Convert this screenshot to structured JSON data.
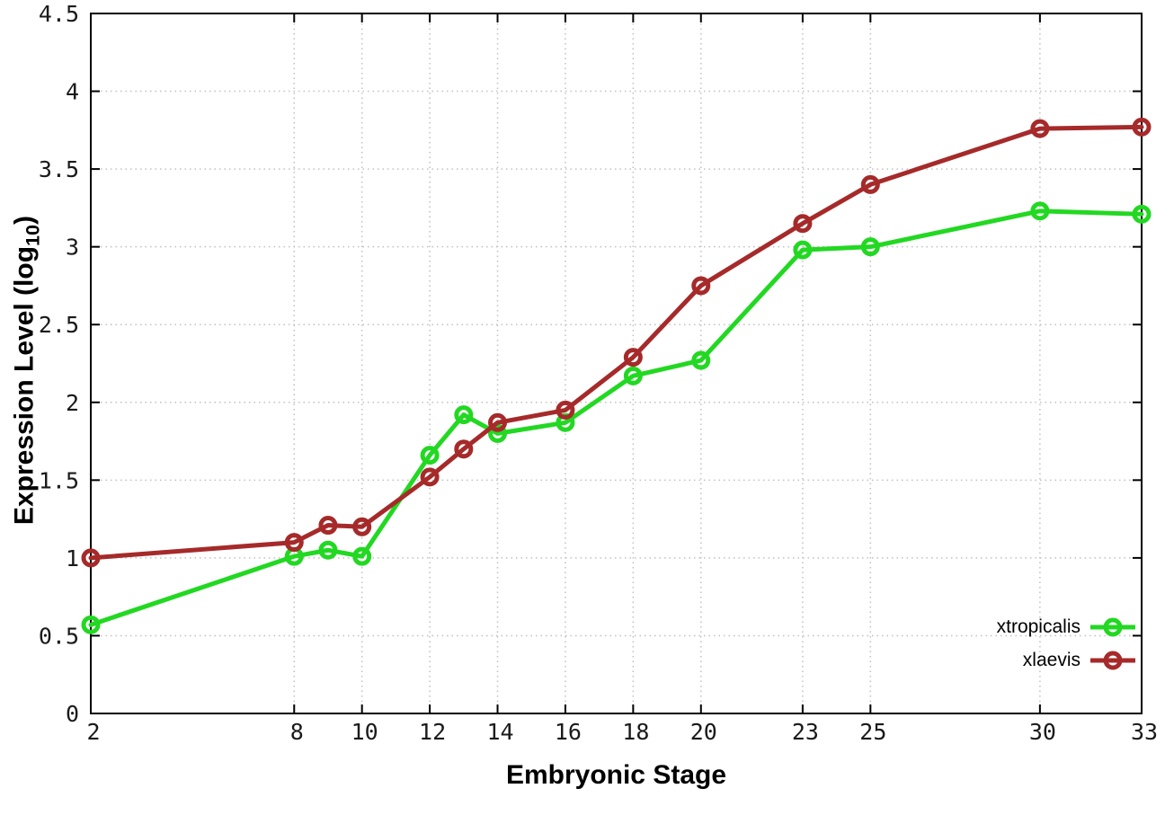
{
  "chart_data": {
    "type": "line",
    "title": "",
    "xlabel": "Embryonic Stage",
    "ylabel": {
      "prefix": "Expression Level (log",
      "sub": "10",
      "suffix": ")"
    },
    "x": [
      2,
      8,
      9,
      10,
      12,
      13,
      14,
      16,
      18,
      20,
      23,
      25,
      30,
      33
    ],
    "xlim": [
      2,
      33
    ],
    "ylim": [
      0,
      4.5
    ],
    "xticks": {
      "values": [
        2,
        8,
        10,
        12,
        14,
        16,
        18,
        20,
        23,
        25,
        30,
        33
      ],
      "labels": [
        "2",
        "8",
        "10",
        "12",
        "14",
        "16",
        "18",
        "20",
        "23",
        "25",
        "30",
        "33"
      ]
    },
    "yticks": {
      "values": [
        0,
        0.5,
        1,
        1.5,
        2,
        2.5,
        3,
        3.5,
        4,
        4.5
      ],
      "labels": [
        "0",
        "0.5",
        "1",
        "1.5",
        "2",
        "2.5",
        "3",
        "3.5",
        "4",
        "4.5"
      ]
    },
    "grid": true,
    "legend_position": "bottom-right",
    "series": [
      {
        "name": "xtropicalis",
        "color": "#22d822",
        "marker": "open-circle",
        "values": [
          0.57,
          1.01,
          1.05,
          1.01,
          1.66,
          1.92,
          1.8,
          1.87,
          2.17,
          2.27,
          2.98,
          3.0,
          3.23,
          3.21
        ]
      },
      {
        "name": "xlaevis",
        "color": "#a62a2a",
        "marker": "open-circle",
        "values": [
          1.0,
          1.1,
          1.21,
          1.2,
          1.52,
          1.7,
          1.87,
          1.95,
          2.29,
          2.75,
          3.15,
          3.4,
          3.76,
          3.77
        ]
      }
    ],
    "colors": {
      "grid": "#c0c0c0",
      "axis": "#000000",
      "background": "#ffffff",
      "text": "#1a1a1a"
    }
  }
}
